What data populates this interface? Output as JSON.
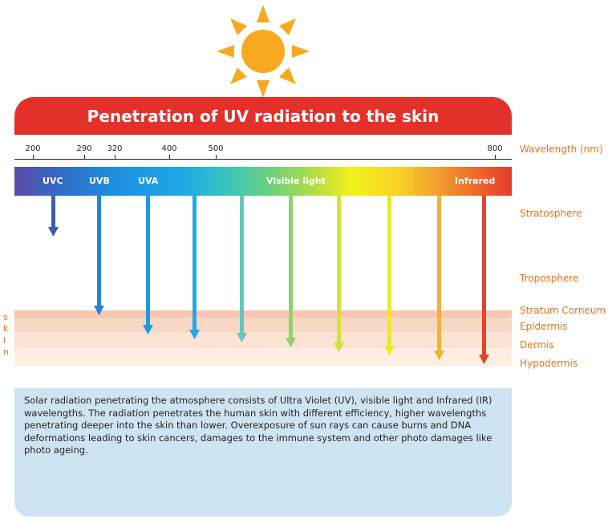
{
  "title": "Penetration of UV radiation to the skin",
  "wavelength_axis": {
    "label": "Wavelength (nm)",
    "ticks": [
      "200",
      "290",
      "320",
      "400",
      "500",
      "800"
    ]
  },
  "bands": {
    "uvc": "UVC",
    "uvb": "UVB",
    "uva": "UVA",
    "visible": "Visible light",
    "infrared": "Infrared"
  },
  "atmosphere": {
    "stratosphere": "Stratosphere",
    "troposphere": "Troposphere"
  },
  "skin": {
    "label_letters": [
      "s",
      "k",
      "i",
      "n"
    ],
    "layers": [
      "Stratum Corneum",
      "Epidermis",
      "Dermis",
      "Hypodermis"
    ]
  },
  "description": "Solar radiation penetrating the atmosphere consists of Ultra Violet (UV), visible light and Infrared (IR) wavelengths. The radiation penetrates the human skin with different efficiency, higher wavelengths penetrating deeper into the skin than lower. Overexposure of sun rays can cause burns and DNA deformations leading to skin cancers, damages to the immune system and other photo damages like photo ageing.",
  "colors": {
    "title_bar": "#e4302a",
    "label_orange": "#e8741a",
    "sun": "#f8a91f",
    "info_box": "#cfe4f3"
  },
  "icons": [
    "sun-icon"
  ]
}
